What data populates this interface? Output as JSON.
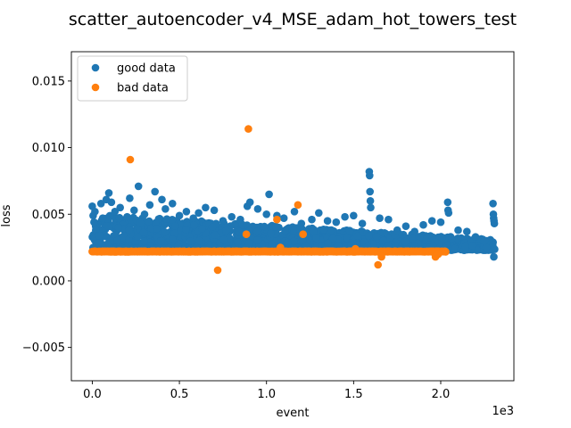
{
  "chart_data": {
    "type": "scatter",
    "title": "scatter_autoencoder_v4_MSE_adam_hot_towers_test",
    "xlabel": "event",
    "ylabel": "loss",
    "x_offset_label": "1e3",
    "xlim": [
      -120,
      2420
    ],
    "ylim": [
      -0.0075,
      0.0172
    ],
    "x_ticks": [
      0,
      500,
      1000,
      1500,
      2000
    ],
    "x_tick_labels": [
      "0.0",
      "0.5",
      "1.0",
      "1.5",
      "2.0"
    ],
    "y_ticks": [
      -0.005,
      0.0,
      0.005,
      0.01,
      0.015
    ],
    "y_tick_labels": [
      "−0.005",
      "0.000",
      "0.005",
      "0.010",
      "0.015"
    ],
    "legend_position": "upper-left",
    "colors": {
      "good": "#1f77b4",
      "bad": "#ff7f0e"
    },
    "series": [
      {
        "name": "good data",
        "color": "#1f77b4",
        "band": {
          "x_range": [
            0,
            2310
          ],
          "baseline": 0.0023,
          "top_start": 0.005,
          "top_end": 0.0031
        },
        "points": [
          [
            0,
            0.0056
          ],
          [
            5,
            0.0049
          ],
          [
            10,
            0.0044
          ],
          [
            15,
            0.0052
          ],
          [
            20,
            0.0038
          ],
          [
            40,
            0.0034
          ],
          [
            35,
            0.0028
          ],
          [
            50,
            0.0058
          ],
          [
            60,
            0.0047
          ],
          [
            80,
            0.0061
          ],
          [
            95,
            0.0066
          ],
          [
            110,
            0.0059
          ],
          [
            130,
            0.0052
          ],
          [
            160,
            0.0055
          ],
          [
            200,
            0.0048
          ],
          [
            215,
            0.0062
          ],
          [
            240,
            0.0053
          ],
          [
            265,
            0.0071
          ],
          [
            300,
            0.005
          ],
          [
            330,
            0.0057
          ],
          [
            360,
            0.0067
          ],
          [
            400,
            0.0061
          ],
          [
            420,
            0.0054
          ],
          [
            460,
            0.0058
          ],
          [
            500,
            0.0049
          ],
          [
            540,
            0.0052
          ],
          [
            580,
            0.0047
          ],
          [
            610,
            0.0051
          ],
          [
            650,
            0.0055
          ],
          [
            700,
            0.0053
          ],
          [
            750,
            0.0045
          ],
          [
            800,
            0.0048
          ],
          [
            850,
            0.0046
          ],
          [
            890,
            0.0056
          ],
          [
            905,
            0.0059
          ],
          [
            950,
            0.0054
          ],
          [
            1000,
            0.005
          ],
          [
            1015,
            0.0065
          ],
          [
            1060,
            0.0049
          ],
          [
            1100,
            0.0047
          ],
          [
            1160,
            0.0052
          ],
          [
            1200,
            0.0043
          ],
          [
            1260,
            0.0046
          ],
          [
            1300,
            0.0051
          ],
          [
            1350,
            0.0045
          ],
          [
            1400,
            0.0044
          ],
          [
            1450,
            0.0048
          ],
          [
            1500,
            0.0049
          ],
          [
            1550,
            0.0043
          ],
          [
            1590,
            0.0082
          ],
          [
            1592,
            0.0079
          ],
          [
            1594,
            0.0067
          ],
          [
            1596,
            0.006
          ],
          [
            1598,
            0.0055
          ],
          [
            1650,
            0.0047
          ],
          [
            1700,
            0.0046
          ],
          [
            1750,
            0.0038
          ],
          [
            1800,
            0.0041
          ],
          [
            1850,
            0.0037
          ],
          [
            1900,
            0.0042
          ],
          [
            1950,
            0.0045
          ],
          [
            2000,
            0.0044
          ],
          [
            2040,
            0.0059
          ],
          [
            2042,
            0.0053
          ],
          [
            2045,
            0.0051
          ],
          [
            2100,
            0.0038
          ],
          [
            2150,
            0.0037
          ],
          [
            2200,
            0.0033
          ],
          [
            2250,
            0.003
          ],
          [
            2300,
            0.0058
          ],
          [
            2302,
            0.005
          ],
          [
            2304,
            0.0047
          ],
          [
            2306,
            0.0045
          ],
          [
            2308,
            0.0043
          ],
          [
            2305,
            0.0018
          ],
          [
            1985,
            0.0021
          ],
          [
            1700,
            0.0026
          ],
          [
            1750,
            0.0022
          ],
          [
            900,
            0.0028
          ],
          [
            1270,
            0.0037
          ]
        ]
      },
      {
        "name": "bad data",
        "color": "#ff7f0e",
        "band": {
          "x_range": [
            0,
            2030
          ],
          "value": 0.0022
        },
        "points": [
          [
            218,
            0.0091
          ],
          [
            896,
            0.0114
          ],
          [
            720,
            0.0008
          ],
          [
            884,
            0.0035
          ],
          [
            1060,
            0.0046
          ],
          [
            1180,
            0.0057
          ],
          [
            1210,
            0.0035
          ],
          [
            1080,
            0.0025
          ],
          [
            1640,
            0.0012
          ],
          [
            1660,
            0.0018
          ],
          [
            1970,
            0.0018
          ],
          [
            1985,
            0.002
          ],
          [
            1510,
            0.0024
          ]
        ]
      }
    ]
  }
}
